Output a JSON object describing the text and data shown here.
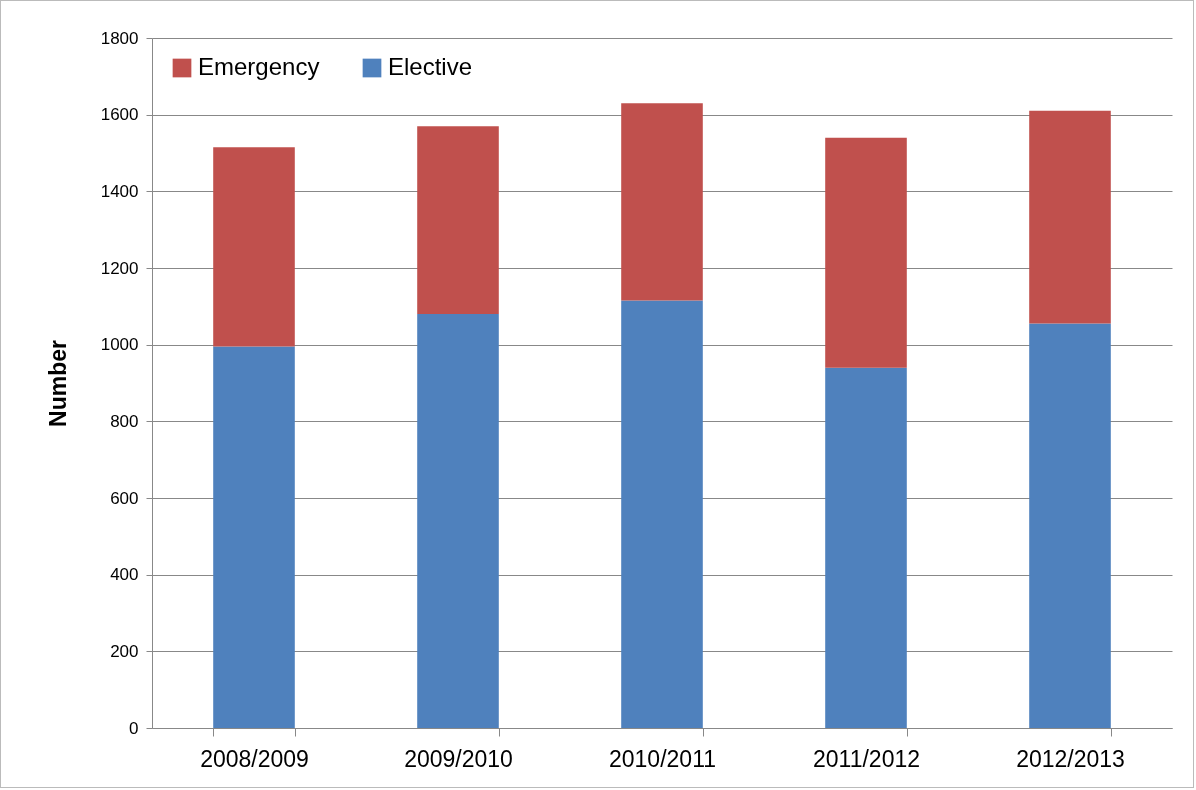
{
  "chart_data": {
    "type": "bar",
    "stacked": true,
    "ylabel": "Number",
    "categories": [
      "2008/2009",
      "2009/2010",
      "2010/2011",
      "2011/2012",
      "2012/2013"
    ],
    "series": [
      {
        "name": "Elective",
        "color": "#4f81bd",
        "values": [
          995,
          1080,
          1115,
          940,
          1055
        ]
      },
      {
        "name": "Emergency",
        "color": "#c0504d",
        "values": [
          520,
          490,
          515,
          600,
          555
        ]
      }
    ],
    "ylim": [
      0,
      1800
    ],
    "yticks": [
      0,
      200,
      400,
      600,
      800,
      1000,
      1200,
      1400,
      1600,
      1800
    ],
    "grid": "y",
    "legend": "top left"
  }
}
